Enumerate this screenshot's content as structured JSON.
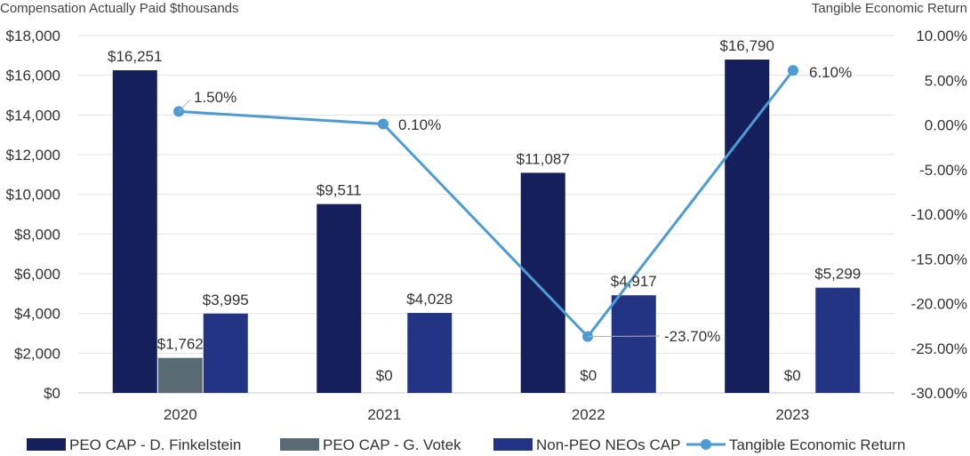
{
  "chart_data": {
    "type": "bar",
    "left_axis_title": "Compensation Actually Paid $thousands",
    "right_axis_title": "Tangible Economic Return",
    "categories": [
      "2020",
      "2021",
      "2022",
      "2023"
    ],
    "y_left": {
      "range": [
        0,
        18000
      ],
      "ticks": [
        0,
        2000,
        4000,
        6000,
        8000,
        10000,
        12000,
        14000,
        16000,
        18000
      ],
      "tick_labels": [
        "$0",
        "$2,000",
        "$4,000",
        "$6,000",
        "$8,000",
        "$10,000",
        "$12,000",
        "$14,000",
        "$16,000",
        "$18,000"
      ]
    },
    "y_right": {
      "range": [
        -30,
        10
      ],
      "ticks": [
        -30,
        -25,
        -20,
        -15,
        -10,
        -5,
        0,
        5,
        10
      ],
      "tick_labels": [
        "-30.00%",
        "-25.00%",
        "-20.00%",
        "-15.00%",
        "-10.00%",
        "-5.00%",
        "0.00%",
        "5.00%",
        "10.00%"
      ]
    },
    "grid": true,
    "legend_position": "bottom",
    "series": [
      {
        "name": "PEO CAP - D. Finkelstein",
        "kind": "bar",
        "color": "#141f5c",
        "values": [
          16251,
          9511,
          11087,
          16790
        ],
        "labels": [
          "$16,251",
          "$9,511",
          "$11,087",
          "$16,790"
        ]
      },
      {
        "name": "PEO CAP - G. Votek",
        "kind": "bar",
        "color": "#5a6a72",
        "values": [
          1762,
          0,
          0,
          0
        ],
        "labels": [
          "$1,762",
          "$0",
          "$0",
          "$0"
        ]
      },
      {
        "name": "Non-PEO NEOs CAP",
        "kind": "bar",
        "color": "#243484",
        "values": [
          3995,
          4028,
          4917,
          5299
        ],
        "labels": [
          "$3,995",
          "$4,028",
          "$4,917",
          "$5,299"
        ]
      },
      {
        "name": "Tangible Economic Return",
        "kind": "line",
        "axis": "right",
        "color": "#4d9bd3",
        "values": [
          1.5,
          0.1,
          -23.7,
          6.1
        ],
        "labels": [
          "1.50%",
          "0.10%",
          "-23.70%",
          "6.10%"
        ]
      }
    ]
  }
}
